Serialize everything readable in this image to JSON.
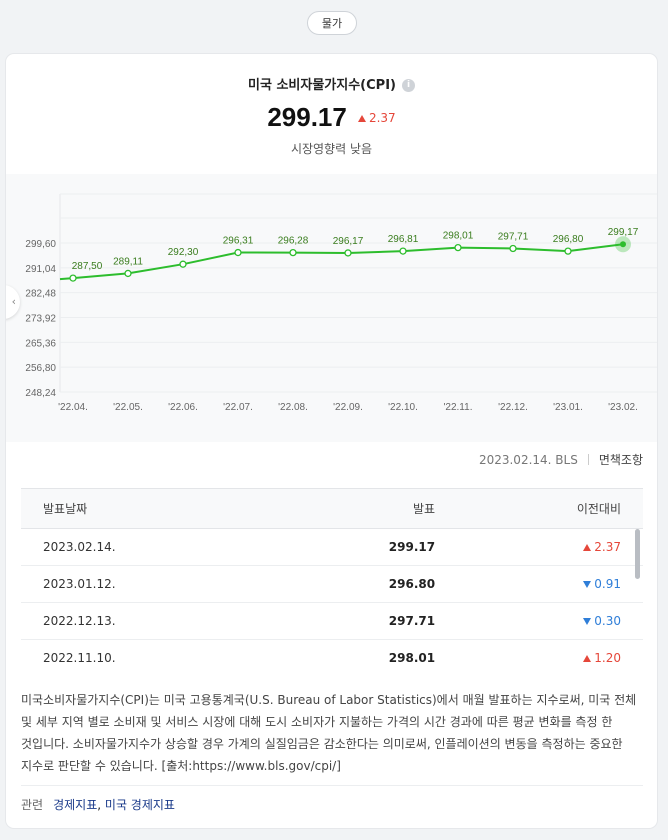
{
  "category_pill": "물가",
  "header": {
    "title": "미국 소비자물가지수(CPI)",
    "value": "299.17",
    "change": "2.37",
    "impact": "시장영향력 낮음"
  },
  "chart_data": {
    "type": "line",
    "categories": [
      "'22.04.",
      "'22.05.",
      "'22.06.",
      "'22.07.",
      "'22.08.",
      "'22.09.",
      "'22.10.",
      "'22.11.",
      "'22.12.",
      "'23.01.",
      "'23.02."
    ],
    "values": [
      287.5,
      289.11,
      292.3,
      296.31,
      296.28,
      296.17,
      296.81,
      298.01,
      297.71,
      296.8,
      299.17
    ],
    "value_labels": [
      "287,50",
      "289,11",
      "292,30",
      "296,31",
      "296,28",
      "296,17",
      "296,81",
      "298,01",
      "297,71",
      "296,80",
      "299,17"
    ],
    "y_ticks": [
      "299,60",
      "291,04",
      "282,48",
      "273,92",
      "265,36",
      "256,80",
      "248,24"
    ],
    "ylim": [
      248.24,
      299.6
    ],
    "grid": true,
    "line_color": "#2dbd2d"
  },
  "source": {
    "date_source": "2023.02.14. BLS",
    "disclaimer": "면책조항"
  },
  "table": {
    "headers": [
      "발표날짜",
      "발표",
      "이전대비"
    ],
    "rows": [
      {
        "date": "2023.02.14.",
        "value": "299.17",
        "change": "2.37",
        "dir": "up"
      },
      {
        "date": "2023.01.12.",
        "value": "296.80",
        "change": "0.91",
        "dir": "down"
      },
      {
        "date": "2022.12.13.",
        "value": "297.71",
        "change": "0.30",
        "dir": "down"
      },
      {
        "date": "2022.11.10.",
        "value": "298.01",
        "change": "1.20",
        "dir": "up"
      }
    ]
  },
  "description": "미국소비자물가지수(CPI)는 미국 고용통계국(U.S. Bureau of Labor Statistics)에서 매월 발표하는 지수로써, 미국 전체 및 세부 지역 별로 소비재 및 서비스 시장에 대해 도시 소비자가 지불하는 가격의 시간 경과에 따른 평균 변화를 측정 한 것입니다. 소비자물가지수가 상승할 경우 가계의 실질임금은 감소한다는 의미로써, 인플레이션의 변동을 측정하는 중요한 지수로 판단할 수 있습니다. [출처:https://www.bls.gov/cpi/]",
  "related": {
    "label": "관련",
    "links": [
      "경제지표",
      "미국 경제지표"
    ]
  },
  "colors": {
    "up": "#e5473a",
    "down": "#2f7ed8",
    "line": "#2dbd2d"
  }
}
